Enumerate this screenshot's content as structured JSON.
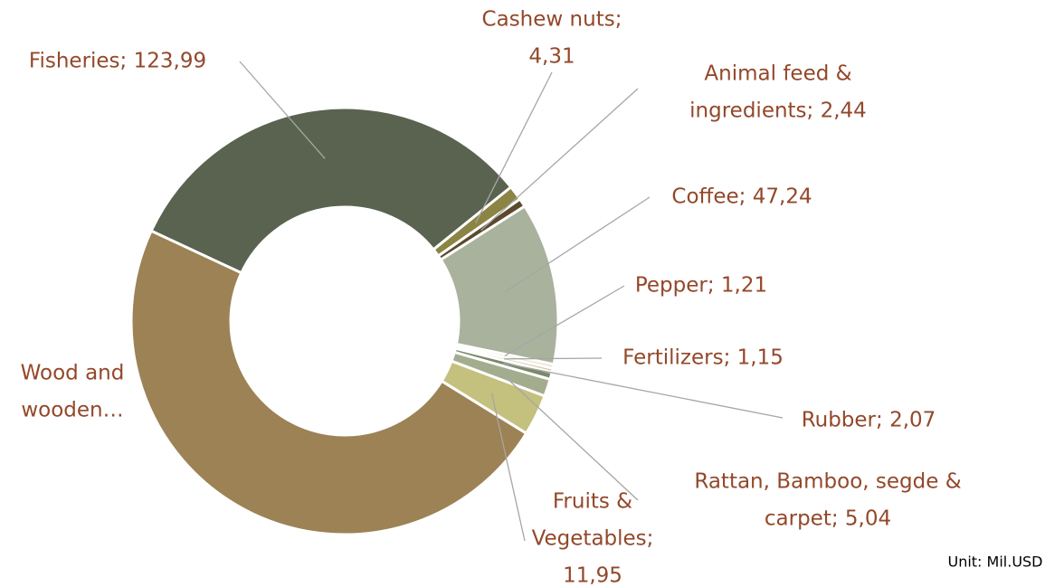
{
  "chart_data": {
    "type": "donut",
    "data_labels": [
      [
        "Fisheries; 123,99"
      ],
      [
        "Cashew nuts;",
        "4,31"
      ],
      [
        "Animal feed &",
        "ingredients; 2,44"
      ],
      [
        "Coffee; 47,24"
      ],
      [
        "Pepper; 1,21"
      ],
      [
        "Fertilizers; 1,15"
      ],
      [
        "Rubber; 2,07"
      ],
      [
        "Rattan, Bamboo, segde &",
        "carpet; 5,04"
      ],
      [
        "Fruits &",
        "Vegetables;",
        "11,95"
      ],
      [
        "Wood and",
        "wooden…"
      ]
    ],
    "values": [
      123.99,
      4.31,
      2.44,
      47.24,
      1.21,
      1.15,
      2.07,
      5.04,
      11.95,
      185
    ],
    "colors": [
      "#5a6350",
      "#8c8444",
      "#5c4a2e",
      "#a9b29c",
      "#ebe3cc",
      "#d8c9a6",
      "#7a8a6a",
      "#a3ad8d",
      "#c4c07e",
      "#9c8255"
    ],
    "unit_note": "Unit: Mil.USD"
  }
}
